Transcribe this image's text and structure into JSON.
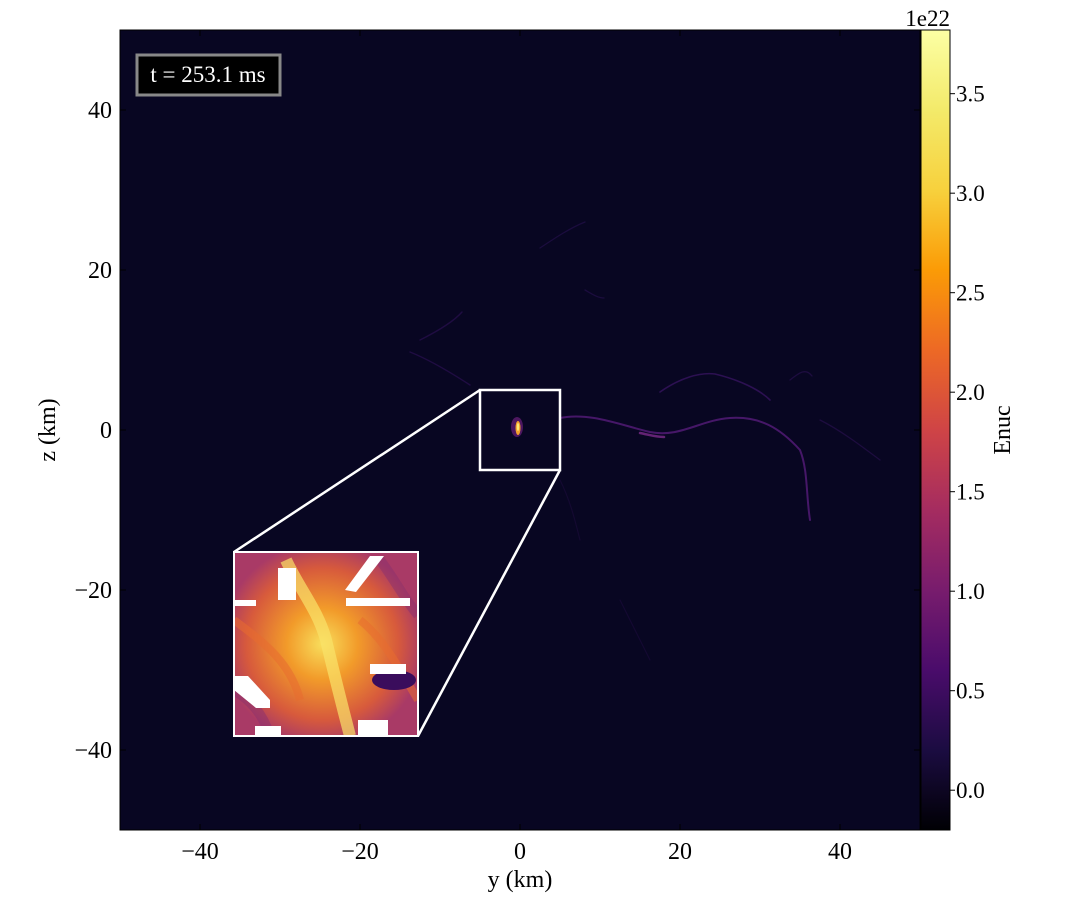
{
  "chart_data": {
    "type": "heatmap",
    "title": "",
    "xlabel": "y  (km)",
    "ylabel": "z  (km)",
    "xlim": [
      -50,
      50
    ],
    "ylim": [
      -50,
      50
    ],
    "xticks": [
      -40,
      -20,
      0,
      20,
      40
    ],
    "yticks": [
      -40,
      -20,
      0,
      20,
      40
    ],
    "xtick_labels": [
      "−40",
      "−20",
      "0",
      "20",
      "40"
    ],
    "ytick_labels": [
      "−40",
      "−20",
      "0",
      "20",
      "40"
    ],
    "time_label": "t = 253.1 ms",
    "colorbar": {
      "label": "Enuc",
      "multiplier": "1e22",
      "range": [
        -0.2,
        3.82
      ],
      "ticks": [
        0.0,
        0.5,
        1.0,
        1.5,
        2.0,
        2.5,
        3.0,
        3.5
      ],
      "tick_labels": [
        "0.0",
        "0.5",
        "1.0",
        "1.5",
        "2.0",
        "2.5",
        "3.0",
        "3.5"
      ],
      "colormap": "inferno"
    },
    "zoom_region": {
      "x": [
        -5,
        5
      ],
      "y": [
        -5,
        5
      ]
    },
    "inset_placement": {
      "x": [
        -36,
        -13
      ],
      "y": [
        -38,
        -15
      ]
    },
    "background_level": 0.0,
    "hotspot": {
      "y": 0.0,
      "z": 0.0,
      "peak": 3.82
    }
  }
}
